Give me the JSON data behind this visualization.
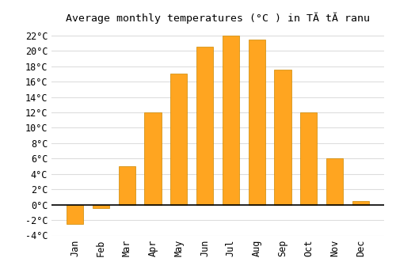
{
  "title": "Average monthly temperatures (°C ) in TĂ tĂ ranu",
  "months": [
    "Jan",
    "Feb",
    "Mar",
    "Apr",
    "May",
    "Jun",
    "Jul",
    "Aug",
    "Sep",
    "Oct",
    "Nov",
    "Dec"
  ],
  "values": [
    -2.5,
    -0.5,
    5.0,
    12.0,
    17.0,
    20.5,
    22.0,
    21.5,
    17.5,
    12.0,
    6.0,
    0.5
  ],
  "bar_color": "#FFA520",
  "bar_edge_color": "#CC8800",
  "ylim": [
    -4,
    23
  ],
  "yticks": [
    -4,
    -2,
    0,
    2,
    4,
    6,
    8,
    10,
    12,
    14,
    16,
    18,
    20,
    22
  ],
  "ytick_labels": [
    "-4°C",
    "-2°C",
    "0°C",
    "2°C",
    "4°C",
    "6°C",
    "8°C",
    "10°C",
    "12°C",
    "14°C",
    "16°C",
    "18°C",
    "20°C",
    "22°C"
  ],
  "background_color": "#FFFFFF",
  "grid_color": "#DDDDDD",
  "title_fontsize": 9.5,
  "tick_fontsize": 8.5
}
